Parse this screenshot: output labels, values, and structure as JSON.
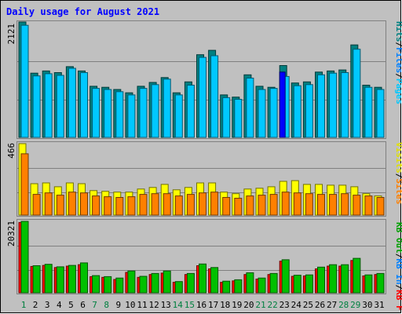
{
  "chart_data": {
    "type": "bar",
    "title": "Daily usage for August 2021",
    "categories": [
      "1",
      "2",
      "3",
      "4",
      "5",
      "6",
      "7",
      "8",
      "9",
      "10",
      "11",
      "12",
      "13",
      "14",
      "15",
      "16",
      "17",
      "18",
      "19",
      "20",
      "21",
      "22",
      "23",
      "24",
      "25",
      "26",
      "27",
      "28",
      "29",
      "30",
      "31"
    ],
    "weekend_days": [
      "1",
      "7",
      "8",
      "14",
      "15",
      "21",
      "22",
      "28",
      "29"
    ],
    "panels": [
      {
        "id": "hits",
        "ymax_label": "2121",
        "ymax": 2121,
        "legend": [
          "Pages",
          "Files",
          "Hits"
        ],
        "series": [
          {
            "name": "Hits",
            "color": "#008080",
            "values": [
              2121,
              1180,
              1220,
              1190,
              1300,
              1220,
              940,
              920,
              880,
              820,
              940,
              1010,
              1100,
              820,
              1020,
              1520,
              1600,
              780,
              740,
              1150,
              940,
              920,
              1320,
              1000,
              1020,
              1200,
              1220,
              1240,
              1700,
              960,
              920
            ]
          },
          {
            "name": "Files",
            "color": "#00C8FF",
            "values": [
              2060,
              1130,
              1170,
              1140,
              1270,
              1190,
              900,
              880,
              840,
              780,
              900,
              970,
              1070,
              780,
              960,
              1470,
              1500,
              730,
              700,
              1090,
              880,
              900,
              1120,
              950,
              970,
              1150,
              1180,
              1190,
              1620,
              920,
              880
            ]
          },
          {
            "name": "Pages",
            "color": "#0000FF",
            "values": [
              0,
              0,
              0,
              0,
              0,
              0,
              0,
              0,
              0,
              0,
              0,
              0,
              0,
              0,
              0,
              0,
              0,
              0,
              0,
              0,
              0,
              0,
              1200,
              0,
              0,
              0,
              0,
              0,
              0,
              0,
              0
            ]
          }
        ]
      },
      {
        "id": "visits",
        "ymax_label": "466",
        "ymax": 466,
        "legend": [
          "Visits",
          "Sites"
        ],
        "series": [
          {
            "name": "Visits",
            "color": "#FFFF00",
            "values": [
              466,
              205,
              210,
              185,
              210,
              205,
              160,
              155,
              150,
              150,
              170,
              180,
              200,
              165,
              180,
              210,
              210,
              150,
              140,
              170,
              175,
              185,
              220,
              225,
              200,
              200,
              195,
              195,
              185,
              140,
              125
            ]
          },
          {
            "name": "Sites",
            "color": "#FF8000",
            "values": [
              400,
              135,
              145,
              130,
              150,
              145,
              125,
              120,
              115,
              120,
              135,
              140,
              140,
              125,
              135,
              145,
              150,
              115,
              110,
              125,
              130,
              135,
              150,
              145,
              140,
              135,
              135,
              140,
              130,
              125,
              115
            ]
          }
        ]
      },
      {
        "id": "kbytes",
        "ymax_label": "20321",
        "ymax": 20321,
        "legend": [
          "KB F",
          "KB In",
          "KB Out"
        ],
        "series": [
          {
            "name": "KB F",
            "color": "#FF0000",
            "values": [
              20000,
              7500,
              7800,
              7200,
              7600,
              8000,
              4600,
              4400,
              3800,
              5800,
              4400,
              5200,
              5600,
              3000,
              5200,
              7700,
              6800,
              3000,
              3400,
              5200,
              3900,
              5200,
              9000,
              4700,
              4800,
              6800,
              7600,
              7600,
              9200,
              4800,
              5200
            ]
          },
          {
            "name": "KB In",
            "color": "#0080FF",
            "values": [
              0,
              0,
              0,
              0,
              0,
              0,
              0,
              0,
              0,
              0,
              0,
              0,
              0,
              0,
              0,
              0,
              0,
              0,
              0,
              0,
              0,
              0,
              0,
              0,
              0,
              0,
              0,
              0,
              0,
              0,
              0
            ]
          },
          {
            "name": "KB Out",
            "color": "#00C000",
            "values": [
              20321,
              7700,
              8100,
              7400,
              7800,
              8500,
              4900,
              4600,
              4200,
              6200,
              4700,
              5500,
              6200,
              3200,
              5500,
              8200,
              7200,
              3300,
              3700,
              5700,
              4200,
              5500,
              9400,
              5000,
              5100,
              7300,
              8000,
              8000,
              9800,
              5100,
              5500
            ]
          }
        ]
      }
    ]
  }
}
